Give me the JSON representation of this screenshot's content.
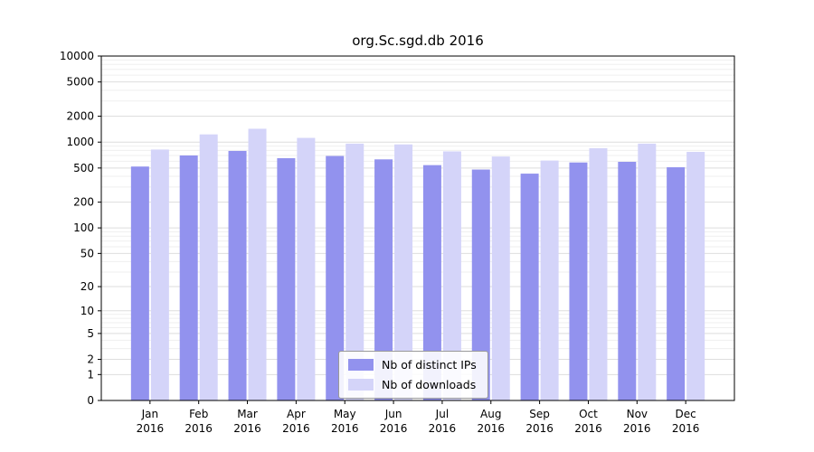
{
  "title": "org.Sc.sgd.db 2016",
  "chart_data": {
    "type": "bar",
    "title": "org.Sc.sgd.db 2016",
    "categories": [
      "Jan",
      "Feb",
      "Mar",
      "Apr",
      "May",
      "Jun",
      "Jul",
      "Aug",
      "Sep",
      "Oct",
      "Nov",
      "Dec"
    ],
    "year_label": "2016",
    "series": [
      {
        "name": "Nb of distinct IPs",
        "color": "#9292ee",
        "values": [
          520,
          700,
          790,
          650,
          690,
          630,
          540,
          480,
          430,
          580,
          590,
          510
        ]
      },
      {
        "name": "Nb of downloads",
        "color": "#d4d4f9",
        "values": [
          820,
          1230,
          1430,
          1120,
          960,
          940,
          780,
          680,
          610,
          850,
          960,
          770
        ]
      }
    ],
    "yscale": "log",
    "yticks": [
      0,
      1,
      2,
      5,
      10,
      20,
      50,
      100,
      200,
      500,
      1000,
      2000,
      5000,
      10000
    ],
    "ylim": [
      0,
      10000
    ],
    "grid": true,
    "legend_position": "lower center",
    "colors": {
      "grid_major": "#dedede",
      "grid_minor": "#efefef",
      "axis": "#000000",
      "background": "#ffffff"
    }
  }
}
